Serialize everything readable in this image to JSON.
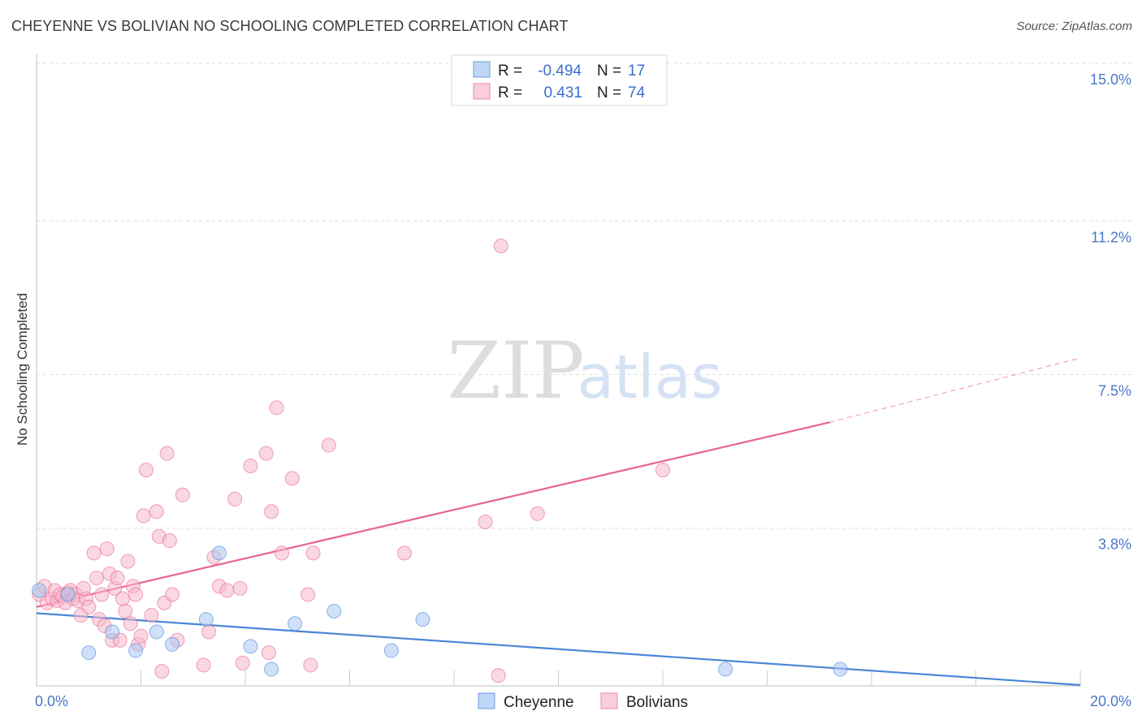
{
  "header": {
    "title": "CHEYENNE VS BOLIVIAN NO SCHOOLING COMPLETED CORRELATION CHART",
    "source": "Source: ZipAtlas.com"
  },
  "watermark": {
    "zip": "ZIP",
    "atlas": "atlas"
  },
  "legend": {
    "rows": [
      {
        "r_label": "R =",
        "r_value": "-0.494",
        "n_label": "N =",
        "n_value": "17",
        "color": "#a9c6f2"
      },
      {
        "r_label": "R =",
        "r_value": "0.431",
        "n_label": "N =",
        "n_value": "74",
        "color": "#f6b8cb"
      }
    ]
  },
  "bottom_legend": [
    "Cheyenne",
    "Bolivians"
  ],
  "chart_data": {
    "type": "scatter",
    "title": "CHEYENNE VS BOLIVIAN NO SCHOOLING COMPLETED CORRELATION CHART",
    "xlabel": "",
    "ylabel": "No Schooling Completed",
    "xlim": [
      0,
      20
    ],
    "ylim": [
      0,
      15
    ],
    "x_tick_labels": [
      "0.0%",
      "20.0%"
    ],
    "y_ticks": [
      3.8,
      7.5,
      11.2,
      15.0
    ],
    "y_tick_labels": [
      "3.8%",
      "7.5%",
      "11.2%",
      "15.0%"
    ],
    "series": [
      {
        "name": "Cheyenne",
        "color": "#4a87d8",
        "fill": "#a9c6f2",
        "r": -0.494,
        "n": 17,
        "points": [
          [
            0.05,
            2.3
          ],
          [
            0.6,
            2.2
          ],
          [
            1.0,
            0.8
          ],
          [
            1.45,
            1.3
          ],
          [
            1.9,
            0.85
          ],
          [
            2.3,
            1.3
          ],
          [
            2.6,
            1.0
          ],
          [
            3.25,
            1.6
          ],
          [
            3.5,
            3.2
          ],
          [
            4.1,
            0.95
          ],
          [
            4.5,
            0.4
          ],
          [
            4.95,
            1.5
          ],
          [
            5.7,
            1.8
          ],
          [
            6.8,
            0.85
          ],
          [
            7.4,
            1.6
          ],
          [
            13.2,
            0.4
          ],
          [
            15.4,
            0.4
          ]
        ],
        "trend": [
          [
            0,
            1.75
          ],
          [
            20,
            0.02
          ]
        ]
      },
      {
        "name": "Bolivians",
        "color": "#e8648f",
        "fill": "#f6b8cb",
        "r": 0.431,
        "n": 74,
        "points": [
          [
            0.05,
            2.2
          ],
          [
            0.15,
            2.4
          ],
          [
            0.2,
            2.0
          ],
          [
            0.3,
            2.1
          ],
          [
            0.35,
            2.3
          ],
          [
            0.4,
            2.05
          ],
          [
            0.45,
            2.2
          ],
          [
            0.5,
            2.15
          ],
          [
            0.55,
            2.0
          ],
          [
            0.6,
            2.25
          ],
          [
            0.65,
            2.3
          ],
          [
            0.7,
            2.1
          ],
          [
            0.75,
            2.2
          ],
          [
            0.8,
            2.05
          ],
          [
            0.85,
            1.7
          ],
          [
            0.9,
            2.35
          ],
          [
            0.95,
            2.1
          ],
          [
            1.0,
            1.9
          ],
          [
            1.1,
            3.2
          ],
          [
            1.15,
            2.6
          ],
          [
            1.2,
            1.6
          ],
          [
            1.25,
            2.2
          ],
          [
            1.3,
            1.45
          ],
          [
            1.35,
            3.3
          ],
          [
            1.4,
            2.7
          ],
          [
            1.45,
            1.1
          ],
          [
            1.5,
            2.35
          ],
          [
            1.55,
            2.6
          ],
          [
            1.6,
            1.1
          ],
          [
            1.65,
            2.1
          ],
          [
            1.7,
            1.8
          ],
          [
            1.75,
            3.0
          ],
          [
            1.8,
            1.5
          ],
          [
            1.85,
            2.4
          ],
          [
            1.9,
            2.2
          ],
          [
            1.95,
            1.0
          ],
          [
            2.0,
            1.2
          ],
          [
            2.05,
            4.1
          ],
          [
            2.1,
            5.2
          ],
          [
            2.2,
            1.7
          ],
          [
            2.3,
            4.2
          ],
          [
            2.35,
            3.6
          ],
          [
            2.4,
            0.35
          ],
          [
            2.45,
            2.0
          ],
          [
            2.5,
            5.6
          ],
          [
            2.55,
            3.5
          ],
          [
            2.6,
            2.2
          ],
          [
            2.7,
            1.1
          ],
          [
            2.8,
            4.6
          ],
          [
            3.2,
            0.5
          ],
          [
            3.3,
            1.3
          ],
          [
            3.4,
            3.1
          ],
          [
            3.5,
            2.4
          ],
          [
            3.65,
            2.3
          ],
          [
            3.8,
            4.5
          ],
          [
            3.9,
            2.35
          ],
          [
            3.95,
            0.55
          ],
          [
            4.1,
            5.3
          ],
          [
            4.45,
            0.8
          ],
          [
            4.4,
            5.6
          ],
          [
            4.5,
            4.2
          ],
          [
            4.6,
            6.7
          ],
          [
            4.7,
            3.2
          ],
          [
            4.9,
            5.0
          ],
          [
            5.2,
            2.2
          ],
          [
            5.25,
            0.5
          ],
          [
            5.3,
            3.2
          ],
          [
            5.6,
            5.8
          ],
          [
            7.05,
            3.2
          ],
          [
            8.6,
            3.95
          ],
          [
            8.9,
            10.6
          ],
          [
            8.85,
            0.25
          ],
          [
            9.6,
            4.15
          ],
          [
            12.0,
            5.2
          ]
        ],
        "trend": [
          [
            0,
            1.9
          ],
          [
            15.2,
            6.35
          ]
        ],
        "trend_dashed_extension": [
          [
            15.2,
            6.35
          ],
          [
            20,
            7.9
          ]
        ]
      }
    ]
  }
}
